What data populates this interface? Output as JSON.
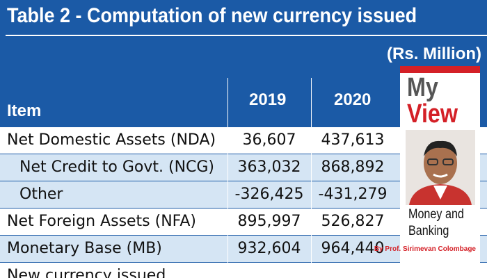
{
  "header": {
    "title": "Table 2 - Computation of new currency issued",
    "unit": "(Rs. Million)"
  },
  "table": {
    "columns": [
      "Item",
      "2019",
      "2020"
    ],
    "rows": [
      [
        "Net Domestic Assets (NDA)",
        "36,607",
        "437,613"
      ],
      [
        "Net Credit to Govt. (NCG)",
        "363,032",
        "868,892"
      ],
      [
        "Other",
        "-326,425",
        "-431,279"
      ],
      [
        "Net Foreign Assets (NFA)",
        "895,997",
        "526,827"
      ],
      [
        "Monetary Base (MB)",
        "932,604",
        "964,440"
      ],
      [
        "New currency issued"
      ]
    ]
  },
  "column_badge": {
    "line1": "My",
    "line2": "View",
    "topic": "Money and Banking",
    "byline_prefix": "By",
    "author": "Prof. Sirimevan Colombage"
  }
}
